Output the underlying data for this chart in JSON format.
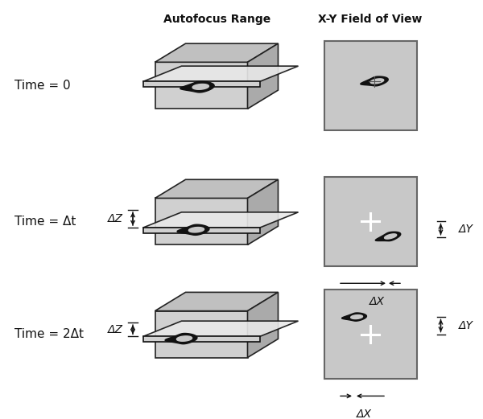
{
  "bg_color": "#ffffff",
  "title_autofocus": "Autofocus Range",
  "title_fov": "X-Y Field of View",
  "time_labels": [
    "Time = 0",
    "Time = Δt",
    "Time = 2Δt"
  ],
  "box3d_light": "#d8d8d8",
  "box3d_mid": "#c0c0c0",
  "box3d_dark": "#a8a8a8",
  "box3d_edge": "#222222",
  "plane_color": "#e8e8e8",
  "plane_edge": "#111111",
  "fov_bg": "#c8c8c8",
  "fov_edge": "#555555",
  "arrow_color": "#111111",
  "delta_z": "ΔZ",
  "delta_x": "ΔX",
  "delta_y": "ΔY"
}
